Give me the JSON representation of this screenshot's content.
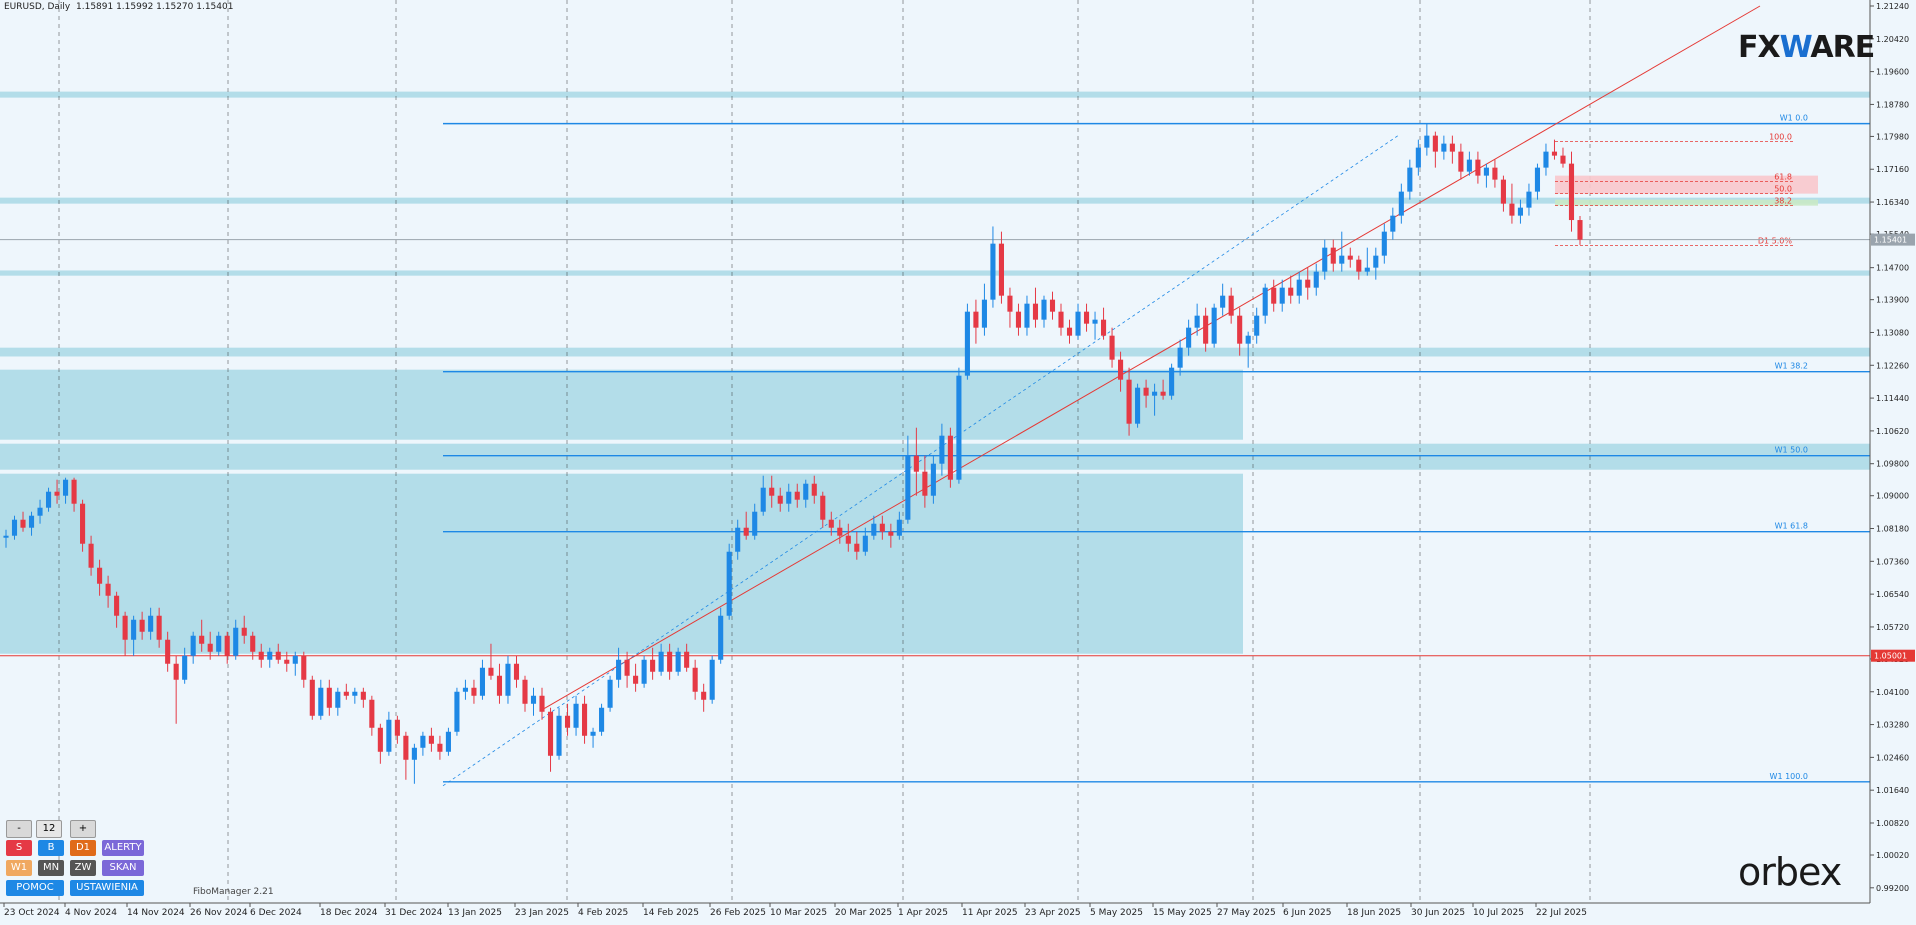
{
  "header": {
    "symbol": "EURUSD, Daily",
    "ohlc": "1.15891 1.15992 1.15270 1.15401"
  },
  "chart_data": {
    "type": "candlestick",
    "symbol": "EURUSD",
    "timeframe": "Daily",
    "ylim": [
      0.9922,
      1.2124
    ],
    "y_ticks": [
      "1.21240",
      "1.20420",
      "1.19600",
      "1.18780",
      "1.17980",
      "1.17160",
      "1.16340",
      "1.15540",
      "1.14700",
      "1.13900",
      "1.13080",
      "1.12260",
      "1.11440",
      "1.10620",
      "1.09800",
      "1.09000",
      "1.08180",
      "1.07360",
      "1.06540",
      "1.05720",
      "1.04920",
      "1.04100",
      "1.03280",
      "1.02460",
      "1.01640",
      "1.00820",
      "1.00020",
      "0.99200"
    ],
    "x_labels": [
      "23 Oct 2024",
      "4 Nov 2024",
      "14 Nov 2024",
      "26 Nov 2024",
      "6 Dec 2024",
      "18 Dec 2024",
      "31 Dec 2024",
      "13 Jan 2025",
      "23 Jan 2025",
      "4 Feb 2025",
      "14 Feb 2025",
      "26 Feb 2025",
      "10 Mar 2025",
      "20 Mar 2025",
      "1 Apr 2025",
      "11 Apr 2025",
      "23 Apr 2025",
      "5 May 2025",
      "15 May 2025",
      "27 May 2025",
      "6 Jun 2025",
      "18 Jun 2025",
      "30 Jun 2025",
      "10 Jul 2025",
      "22 Jul 2025"
    ],
    "candles": [
      [
        1.0795,
        1.0815,
        1.077,
        1.08
      ],
      [
        1.08,
        1.085,
        1.079,
        1.084
      ],
      [
        1.084,
        1.086,
        1.081,
        1.082
      ],
      [
        1.082,
        1.086,
        1.08,
        1.085
      ],
      [
        1.085,
        1.089,
        1.083,
        1.087
      ],
      [
        1.087,
        1.092,
        1.086,
        1.091
      ],
      [
        1.091,
        1.094,
        1.088,
        1.09
      ],
      [
        1.09,
        1.0945,
        1.088,
        1.094
      ],
      [
        1.094,
        1.0945,
        1.086,
        1.088
      ],
      [
        1.088,
        1.089,
        1.076,
        1.078
      ],
      [
        1.078,
        1.08,
        1.07,
        1.072
      ],
      [
        1.072,
        1.074,
        1.065,
        1.068
      ],
      [
        1.068,
        1.07,
        1.062,
        1.065
      ],
      [
        1.065,
        1.066,
        1.057,
        1.06
      ],
      [
        1.06,
        1.061,
        1.05,
        1.054
      ],
      [
        1.054,
        1.06,
        1.05,
        1.059
      ],
      [
        1.059,
        1.061,
        1.054,
        1.056
      ],
      [
        1.056,
        1.062,
        1.054,
        1.06
      ],
      [
        1.06,
        1.062,
        1.052,
        1.054
      ],
      [
        1.054,
        1.056,
        1.046,
        1.048
      ],
      [
        1.048,
        1.05,
        1.033,
        1.044
      ],
      [
        1.044,
        1.052,
        1.043,
        1.05
      ],
      [
        1.05,
        1.056,
        1.048,
        1.055
      ],
      [
        1.055,
        1.059,
        1.051,
        1.053
      ],
      [
        1.053,
        1.056,
        1.049,
        1.051
      ],
      [
        1.051,
        1.056,
        1.05,
        1.055
      ],
      [
        1.055,
        1.056,
        1.048,
        1.05
      ],
      [
        1.05,
        1.059,
        1.049,
        1.057
      ],
      [
        1.057,
        1.06,
        1.053,
        1.055
      ],
      [
        1.055,
        1.056,
        1.049,
        1.051
      ],
      [
        1.051,
        1.053,
        1.047,
        1.049
      ],
      [
        1.049,
        1.052,
        1.047,
        1.051
      ],
      [
        1.051,
        1.053,
        1.048,
        1.049
      ],
      [
        1.049,
        1.051,
        1.046,
        1.048
      ],
      [
        1.048,
        1.051,
        1.045,
        1.05
      ],
      [
        1.05,
        1.051,
        1.042,
        1.044
      ],
      [
        1.044,
        1.045,
        1.034,
        1.035
      ],
      [
        1.035,
        1.044,
        1.034,
        1.042
      ],
      [
        1.042,
        1.044,
        1.035,
        1.037
      ],
      [
        1.037,
        1.042,
        1.035,
        1.041
      ],
      [
        1.041,
        1.043,
        1.039,
        1.04
      ],
      [
        1.04,
        1.042,
        1.038,
        1.041
      ],
      [
        1.041,
        1.042,
        1.037,
        1.039
      ],
      [
        1.039,
        1.04,
        1.03,
        1.032
      ],
      [
        1.032,
        1.033,
        1.023,
        1.026
      ],
      [
        1.026,
        1.036,
        1.025,
        1.034
      ],
      [
        1.034,
        1.035,
        1.028,
        1.03
      ],
      [
        1.03,
        1.031,
        1.019,
        1.024
      ],
      [
        1.024,
        1.028,
        1.018,
        1.027
      ],
      [
        1.027,
        1.031,
        1.025,
        1.03
      ],
      [
        1.03,
        1.032,
        1.026,
        1.028
      ],
      [
        1.028,
        1.03,
        1.024,
        1.026
      ],
      [
        1.026,
        1.032,
        1.025,
        1.031
      ],
      [
        1.031,
        1.042,
        1.03,
        1.041
      ],
      [
        1.041,
        1.044,
        1.039,
        1.042
      ],
      [
        1.042,
        1.044,
        1.038,
        1.04
      ],
      [
        1.04,
        1.049,
        1.039,
        1.047
      ],
      [
        1.047,
        1.053,
        1.044,
        1.045
      ],
      [
        1.045,
        1.048,
        1.038,
        1.04
      ],
      [
        1.04,
        1.05,
        1.038,
        1.048
      ],
      [
        1.048,
        1.05,
        1.042,
        1.044
      ],
      [
        1.044,
        1.045,
        1.036,
        1.038
      ],
      [
        1.038,
        1.042,
        1.035,
        1.04
      ],
      [
        1.04,
        1.042,
        1.034,
        1.036
      ],
      [
        1.036,
        1.037,
        1.021,
        1.025
      ],
      [
        1.025,
        1.037,
        1.024,
        1.035
      ],
      [
        1.035,
        1.038,
        1.03,
        1.032
      ],
      [
        1.032,
        1.04,
        1.03,
        1.038
      ],
      [
        1.038,
        1.04,
        1.028,
        1.03
      ],
      [
        1.03,
        1.032,
        1.027,
        1.031
      ],
      [
        1.031,
        1.038,
        1.03,
        1.037
      ],
      [
        1.037,
        1.045,
        1.036,
        1.044
      ],
      [
        1.044,
        1.052,
        1.042,
        1.049
      ],
      [
        1.049,
        1.051,
        1.042,
        1.045
      ],
      [
        1.045,
        1.048,
        1.041,
        1.043
      ],
      [
        1.043,
        1.05,
        1.042,
        1.049
      ],
      [
        1.049,
        1.052,
        1.044,
        1.046
      ],
      [
        1.046,
        1.053,
        1.045,
        1.051
      ],
      [
        1.051,
        1.053,
        1.044,
        1.046
      ],
      [
        1.046,
        1.052,
        1.045,
        1.051
      ],
      [
        1.051,
        1.053,
        1.046,
        1.047
      ],
      [
        1.047,
        1.049,
        1.039,
        1.041
      ],
      [
        1.041,
        1.043,
        1.036,
        1.039
      ],
      [
        1.039,
        1.05,
        1.038,
        1.049
      ],
      [
        1.049,
        1.062,
        1.048,
        1.06
      ],
      [
        1.06,
        1.078,
        1.059,
        1.076
      ],
      [
        1.076,
        1.084,
        1.074,
        1.082
      ],
      [
        1.082,
        1.086,
        1.079,
        1.08
      ],
      [
        1.08,
        1.088,
        1.079,
        1.086
      ],
      [
        1.086,
        1.095,
        1.085,
        1.092
      ],
      [
        1.092,
        1.095,
        1.087,
        1.09
      ],
      [
        1.09,
        1.092,
        1.086,
        1.088
      ],
      [
        1.088,
        1.093,
        1.086,
        1.091
      ],
      [
        1.091,
        1.093,
        1.087,
        1.089
      ],
      [
        1.089,
        1.094,
        1.087,
        1.093
      ],
      [
        1.093,
        1.095,
        1.088,
        1.09
      ],
      [
        1.09,
        1.091,
        1.082,
        1.084
      ],
      [
        1.084,
        1.086,
        1.08,
        1.082
      ],
      [
        1.082,
        1.084,
        1.078,
        1.08
      ],
      [
        1.08,
        1.083,
        1.076,
        1.078
      ],
      [
        1.078,
        1.081,
        1.074,
        1.076
      ],
      [
        1.076,
        1.082,
        1.075,
        1.08
      ],
      [
        1.08,
        1.085,
        1.079,
        1.083
      ],
      [
        1.083,
        1.085,
        1.079,
        1.081
      ],
      [
        1.081,
        1.083,
        1.077,
        1.08
      ],
      [
        1.08,
        1.086,
        1.079,
        1.084
      ],
      [
        1.084,
        1.105,
        1.083,
        1.1
      ],
      [
        1.1,
        1.107,
        1.09,
        1.096
      ],
      [
        1.096,
        1.1,
        1.087,
        1.09
      ],
      [
        1.09,
        1.1,
        1.088,
        1.098
      ],
      [
        1.098,
        1.108,
        1.095,
        1.105
      ],
      [
        1.105,
        1.107,
        1.092,
        1.094
      ],
      [
        1.094,
        1.122,
        1.093,
        1.12
      ],
      [
        1.12,
        1.138,
        1.119,
        1.136
      ],
      [
        1.136,
        1.139,
        1.128,
        1.132
      ],
      [
        1.132,
        1.143,
        1.13,
        1.139
      ],
      [
        1.139,
        1.1573,
        1.137,
        1.153
      ],
      [
        1.153,
        1.156,
        1.138,
        1.14
      ],
      [
        1.14,
        1.142,
        1.132,
        1.136
      ],
      [
        1.136,
        1.138,
        1.13,
        1.132
      ],
      [
        1.132,
        1.14,
        1.13,
        1.138
      ],
      [
        1.138,
        1.142,
        1.132,
        1.134
      ],
      [
        1.134,
        1.14,
        1.132,
        1.139
      ],
      [
        1.139,
        1.141,
        1.134,
        1.136
      ],
      [
        1.136,
        1.138,
        1.13,
        1.132
      ],
      [
        1.132,
        1.134,
        1.128,
        1.13
      ],
      [
        1.13,
        1.138,
        1.129,
        1.136
      ],
      [
        1.136,
        1.138,
        1.131,
        1.133
      ],
      [
        1.133,
        1.136,
        1.129,
        1.134
      ],
      [
        1.134,
        1.137,
        1.129,
        1.13
      ],
      [
        1.13,
        1.132,
        1.122,
        1.124
      ],
      [
        1.124,
        1.126,
        1.116,
        1.119
      ],
      [
        1.119,
        1.122,
        1.105,
        1.108
      ],
      [
        1.108,
        1.118,
        1.107,
        1.117
      ],
      [
        1.117,
        1.119,
        1.112,
        1.115
      ],
      [
        1.115,
        1.118,
        1.11,
        1.116
      ],
      [
        1.116,
        1.119,
        1.114,
        1.115
      ],
      [
        1.115,
        1.123,
        1.114,
        1.122
      ],
      [
        1.122,
        1.129,
        1.12,
        1.127
      ],
      [
        1.127,
        1.134,
        1.125,
        1.132
      ],
      [
        1.132,
        1.138,
        1.13,
        1.135
      ],
      [
        1.135,
        1.137,
        1.126,
        1.128
      ],
      [
        1.128,
        1.138,
        1.127,
        1.137
      ],
      [
        1.137,
        1.143,
        1.135,
        1.14
      ],
      [
        1.14,
        1.142,
        1.133,
        1.135
      ],
      [
        1.135,
        1.137,
        1.125,
        1.128
      ],
      [
        1.128,
        1.131,
        1.122,
        1.13
      ],
      [
        1.13,
        1.137,
        1.128,
        1.135
      ],
      [
        1.135,
        1.143,
        1.133,
        1.142
      ],
      [
        1.142,
        1.144,
        1.136,
        1.138
      ],
      [
        1.138,
        1.144,
        1.136,
        1.142
      ],
      [
        1.142,
        1.145,
        1.138,
        1.14
      ],
      [
        1.14,
        1.146,
        1.138,
        1.144
      ],
      [
        1.144,
        1.147,
        1.139,
        1.142
      ],
      [
        1.142,
        1.148,
        1.14,
        1.146
      ],
      [
        1.146,
        1.154,
        1.144,
        1.152
      ],
      [
        1.152,
        1.154,
        1.146,
        1.148
      ],
      [
        1.148,
        1.156,
        1.146,
        1.15
      ],
      [
        1.15,
        1.152,
        1.147,
        1.149
      ],
      [
        1.149,
        1.15,
        1.144,
        1.146
      ],
      [
        1.146,
        1.152,
        1.145,
        1.147
      ],
      [
        1.147,
        1.152,
        1.144,
        1.15
      ],
      [
        1.15,
        1.158,
        1.148,
        1.156
      ],
      [
        1.156,
        1.162,
        1.154,
        1.16
      ],
      [
        1.16,
        1.168,
        1.158,
        1.166
      ],
      [
        1.166,
        1.174,
        1.164,
        1.172
      ],
      [
        1.172,
        1.179,
        1.17,
        1.177
      ],
      [
        1.177,
        1.183,
        1.175,
        1.18
      ],
      [
        1.18,
        1.181,
        1.172,
        1.176
      ],
      [
        1.176,
        1.18,
        1.174,
        1.178
      ],
      [
        1.178,
        1.18,
        1.173,
        1.176
      ],
      [
        1.176,
        1.178,
        1.169,
        1.171
      ],
      [
        1.171,
        1.176,
        1.17,
        1.174
      ],
      [
        1.174,
        1.176,
        1.168,
        1.17
      ],
      [
        1.17,
        1.173,
        1.167,
        1.172
      ],
      [
        1.172,
        1.174,
        1.167,
        1.169
      ],
      [
        1.169,
        1.17,
        1.161,
        1.163
      ],
      [
        1.163,
        1.168,
        1.158,
        1.16
      ],
      [
        1.16,
        1.164,
        1.158,
        1.162
      ],
      [
        1.162,
        1.168,
        1.16,
        1.166
      ],
      [
        1.166,
        1.173,
        1.164,
        1.172
      ],
      [
        1.172,
        1.178,
        1.17,
        1.176
      ],
      [
        1.176,
        1.179,
        1.174,
        1.175
      ],
      [
        1.175,
        1.177,
        1.172,
        1.173
      ],
      [
        1.173,
        1.176,
        1.156,
        1.1589
      ],
      [
        1.1589,
        1.1599,
        1.1527,
        1.154
      ]
    ],
    "price_lines": [
      {
        "label": "1.15401",
        "value": 1.15401,
        "color": "#9aa4ad"
      },
      {
        "label": "1.05001",
        "value": 1.05001,
        "color": "#e53935"
      }
    ],
    "fib_w1": [
      {
        "label": "W1 0.0",
        "value": 1.183
      },
      {
        "label": "W1 38.2",
        "value": 1.121
      },
      {
        "label": "W1 50.0",
        "value": 1.1
      },
      {
        "label": "W1 61.8",
        "value": 1.081
      },
      {
        "label": "W1 100.0",
        "value": 1.0185
      }
    ],
    "fib_d1": [
      {
        "label": "100.0",
        "value": 1.1785
      },
      {
        "label": "61.8",
        "value": 1.1685
      },
      {
        "label": "50.0",
        "value": 1.1655
      },
      {
        "label": "38.2",
        "value": 1.1625
      },
      {
        "label": "D1 5.0%",
        "value": 1.1525
      }
    ],
    "zones": [
      {
        "from": 1.1895,
        "to": 1.191
      },
      {
        "from": 1.163,
        "to": 1.1645
      },
      {
        "from": 1.145,
        "to": 1.1463
      },
      {
        "from": 1.1248,
        "to": 1.127
      },
      {
        "from": 1.104,
        "to": 1.1215
      },
      {
        "from": 1.0965,
        "to": 1.103
      },
      {
        "from": 1.0505,
        "to": 1.0955
      }
    ],
    "grid": true
  },
  "panel": {
    "minus": "-",
    "value": "12",
    "plus": "+",
    "s": "S",
    "b": "B",
    "d1": "D1",
    "alerty": "ALERTY",
    "w1": "W1",
    "mn": "MN",
    "zw": "ZW",
    "skan": "SKAN",
    "pomoc": "POMOC",
    "ustawienia": "USTAWIENIA"
  },
  "fibomanager": "FiboManager 2.21",
  "logos": {
    "fxware_left": "FX",
    "fxware_w": "W",
    "fxware_right": "ARE",
    "orbex": "orbex"
  },
  "colors": {
    "bull": "#1e88e5",
    "bear": "#e53945",
    "zone": "#a8d8e5",
    "fib": "#1e88e5",
    "trend": "#e53935"
  }
}
